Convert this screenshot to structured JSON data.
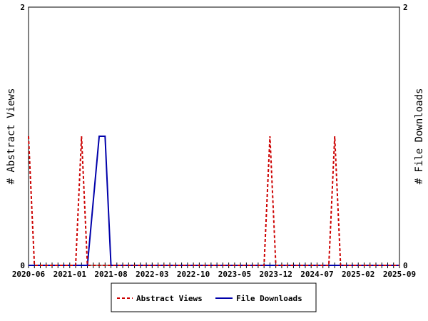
{
  "chart_data": {
    "type": "line",
    "ylabel_left": "# Abstract Views",
    "ylabel_right": "# File Downloads",
    "y_range": [
      0,
      2
    ],
    "y_ticks": [
      "0",
      "2"
    ],
    "x_range": [
      "2020-06",
      "2025-09"
    ],
    "x_tick_labels": [
      "2020-06",
      "2021-01",
      "2021-08",
      "2022-03",
      "2022-10",
      "2023-05",
      "2023-12",
      "2024-07",
      "2025-02",
      "2025-09"
    ],
    "legend_position": "bottom-center",
    "series": [
      {
        "name": "Abstract Views",
        "color": "#cc0000",
        "style": "dashed",
        "axis": "left",
        "points": [
          [
            "2020-06",
            1
          ],
          [
            "2020-07",
            0
          ],
          [
            "2021-02",
            0
          ],
          [
            "2021-03",
            1
          ],
          [
            "2021-04",
            0
          ],
          [
            "2023-10",
            0
          ],
          [
            "2023-11",
            1
          ],
          [
            "2023-12",
            0
          ],
          [
            "2024-09",
            0
          ],
          [
            "2024-10",
            1
          ],
          [
            "2024-11",
            0
          ],
          [
            "2025-09",
            0
          ]
        ]
      },
      {
        "name": "File Downloads",
        "color": "#0000aa",
        "style": "solid",
        "axis": "right",
        "points": [
          [
            "2020-06",
            0
          ],
          [
            "2021-04",
            0
          ],
          [
            "2021-06",
            1
          ],
          [
            "2021-07",
            1
          ],
          [
            "2021-08",
            0
          ],
          [
            "2025-09",
            0
          ]
        ]
      }
    ]
  }
}
